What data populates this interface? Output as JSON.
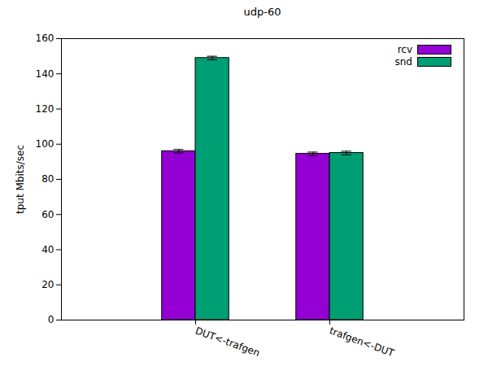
{
  "chart_data": {
    "type": "bar",
    "title": "udp-60",
    "y_label": "tput Mbits/sec",
    "categories": [
      "DUT<-trafgen",
      "trafgen<-DUT"
    ],
    "series": [
      {
        "name": "rcv",
        "color": "#9400d3",
        "values": [
          96,
          94.5
        ],
        "errors": [
          1,
          1
        ]
      },
      {
        "name": "snd",
        "color": "#009e73",
        "values": [
          149,
          95
        ],
        "errors": [
          1,
          1
        ]
      }
    ],
    "ylim": [
      0,
      160
    ],
    "yticks": [
      0,
      20,
      40,
      60,
      80,
      100,
      120,
      140,
      160
    ],
    "legend": "top-right"
  }
}
